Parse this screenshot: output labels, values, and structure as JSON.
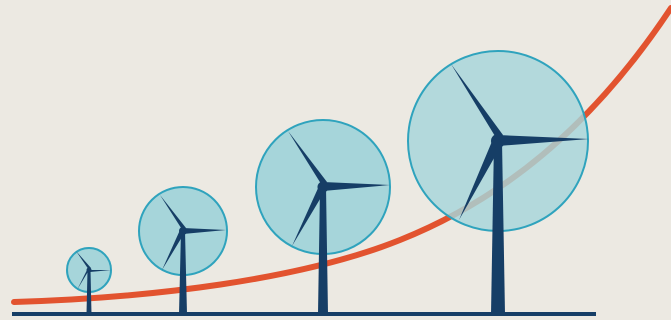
{
  "illustration": {
    "subject": "wind-turbines-growing",
    "colors": {
      "background": "#ECE9E2",
      "curve": "#E2532F",
      "rotor_fill": "#A6D5DA",
      "rotor_stroke": "#2FA3BD",
      "tower": "#163E66",
      "ground": "#163E66"
    }
  }
}
